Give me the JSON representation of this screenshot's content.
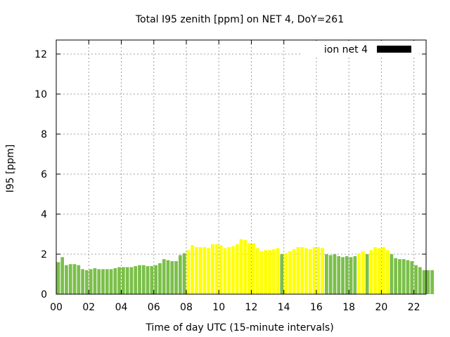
{
  "chart_data": {
    "type": "bar",
    "title": "Total I95 zenith [ppm] on NET 4, DoY=261",
    "xlabel": "Time of day UTC (15-minute intervals)",
    "ylabel": "I95 [ppm]",
    "xlim": [
      0,
      22.75
    ],
    "ylim": [
      0,
      12.7
    ],
    "xticks": [
      0,
      2,
      4,
      6,
      8,
      10,
      12,
      14,
      16,
      18,
      20,
      22
    ],
    "xtick_labels": [
      "00",
      "02",
      "04",
      "06",
      "08",
      "10",
      "12",
      "14",
      "16",
      "18",
      "20",
      "22"
    ],
    "yticks": [
      0,
      2,
      4,
      6,
      8,
      10,
      12
    ],
    "ytick_labels": [
      "0",
      "2",
      "4",
      "6",
      "8",
      "10",
      "12"
    ],
    "grid": true,
    "legend": {
      "label": "ion net 4",
      "placement": "top-right",
      "color": "#000000"
    },
    "color_key": {
      "green": "#7bbf4a",
      "yellow": "#ffff00"
    },
    "bar_interval_hours": 0.25,
    "values": [
      1.6,
      1.85,
      1.45,
      1.5,
      1.5,
      1.45,
      1.25,
      1.2,
      1.25,
      1.3,
      1.25,
      1.25,
      1.25,
      1.25,
      1.3,
      1.35,
      1.35,
      1.35,
      1.35,
      1.4,
      1.45,
      1.45,
      1.4,
      1.4,
      1.45,
      1.55,
      1.75,
      1.7,
      1.65,
      1.65,
      1.95,
      2.05,
      2.2,
      2.45,
      2.35,
      2.35,
      2.35,
      2.3,
      2.5,
      2.5,
      2.45,
      2.3,
      2.35,
      2.4,
      2.5,
      2.75,
      2.7,
      2.55,
      2.55,
      2.3,
      2.15,
      2.2,
      2.2,
      2.25,
      2.3,
      2.0,
      2.05,
      2.15,
      2.25,
      2.35,
      2.35,
      2.3,
      2.25,
      2.35,
      2.35,
      2.3,
      2.0,
      1.95,
      2.0,
      1.9,
      1.85,
      1.9,
      1.85,
      1.9,
      2.05,
      2.15,
      2.0,
      2.2,
      2.35,
      2.3,
      2.35,
      2.2,
      2.0,
      1.8,
      1.75,
      1.75,
      1.7,
      1.65,
      1.45,
      1.35,
      1.2,
      1.2,
      1.2
    ],
    "colors": [
      "green",
      "green",
      "green",
      "green",
      "green",
      "green",
      "green",
      "green",
      "green",
      "green",
      "green",
      "green",
      "green",
      "green",
      "green",
      "green",
      "green",
      "green",
      "green",
      "green",
      "green",
      "green",
      "green",
      "green",
      "green",
      "green",
      "green",
      "green",
      "green",
      "green",
      "green",
      "green",
      "yellow",
      "yellow",
      "yellow",
      "yellow",
      "yellow",
      "yellow",
      "yellow",
      "yellow",
      "yellow",
      "yellow",
      "yellow",
      "yellow",
      "yellow",
      "yellow",
      "yellow",
      "yellow",
      "yellow",
      "yellow",
      "yellow",
      "yellow",
      "yellow",
      "yellow",
      "yellow",
      "green",
      "yellow",
      "yellow",
      "yellow",
      "yellow",
      "yellow",
      "yellow",
      "yellow",
      "yellow",
      "yellow",
      "yellow",
      "green",
      "green",
      "green",
      "green",
      "green",
      "green",
      "green",
      "green",
      "yellow",
      "yellow",
      "green",
      "yellow",
      "yellow",
      "yellow",
      "yellow",
      "yellow",
      "green",
      "green",
      "green",
      "green",
      "green",
      "green",
      "green",
      "green",
      "green",
      "green",
      "green"
    ]
  }
}
